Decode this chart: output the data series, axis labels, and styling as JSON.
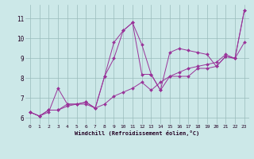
{
  "xlabel": "Windchill (Refroidissement éolien,°C)",
  "ylabel": "",
  "background_color": "#cce8e8",
  "line_color": "#993399",
  "grid_color": "#99bbbb",
  "xlim": [
    -0.5,
    23.5
  ],
  "ylim": [
    5.7,
    11.7
  ],
  "xticks": [
    0,
    1,
    2,
    3,
    4,
    5,
    6,
    7,
    8,
    9,
    10,
    11,
    12,
    13,
    14,
    15,
    16,
    17,
    18,
    19,
    20,
    21,
    22,
    23
  ],
  "yticks": [
    6,
    7,
    8,
    9,
    10,
    11
  ],
  "series": [
    [
      6.3,
      6.1,
      6.3,
      7.5,
      6.7,
      6.7,
      6.8,
      6.5,
      8.1,
      9.8,
      10.4,
      10.8,
      9.7,
      8.2,
      7.4,
      8.1,
      8.1,
      8.1,
      8.5,
      8.5,
      8.6,
      9.1,
      9.0,
      11.4
    ],
    [
      6.3,
      6.1,
      6.4,
      6.4,
      6.6,
      6.7,
      6.7,
      6.5,
      6.7,
      7.1,
      7.3,
      7.5,
      7.8,
      7.4,
      7.8,
      8.1,
      8.3,
      8.5,
      8.6,
      8.7,
      8.8,
      9.2,
      9.0,
      11.4
    ],
    [
      6.3,
      6.1,
      6.4,
      6.4,
      6.7,
      6.7,
      6.8,
      6.5,
      8.1,
      9.0,
      10.4,
      10.8,
      8.2,
      8.2,
      7.4,
      9.3,
      9.5,
      9.4,
      9.3,
      9.2,
      8.6,
      9.1,
      9.0,
      9.8
    ]
  ]
}
